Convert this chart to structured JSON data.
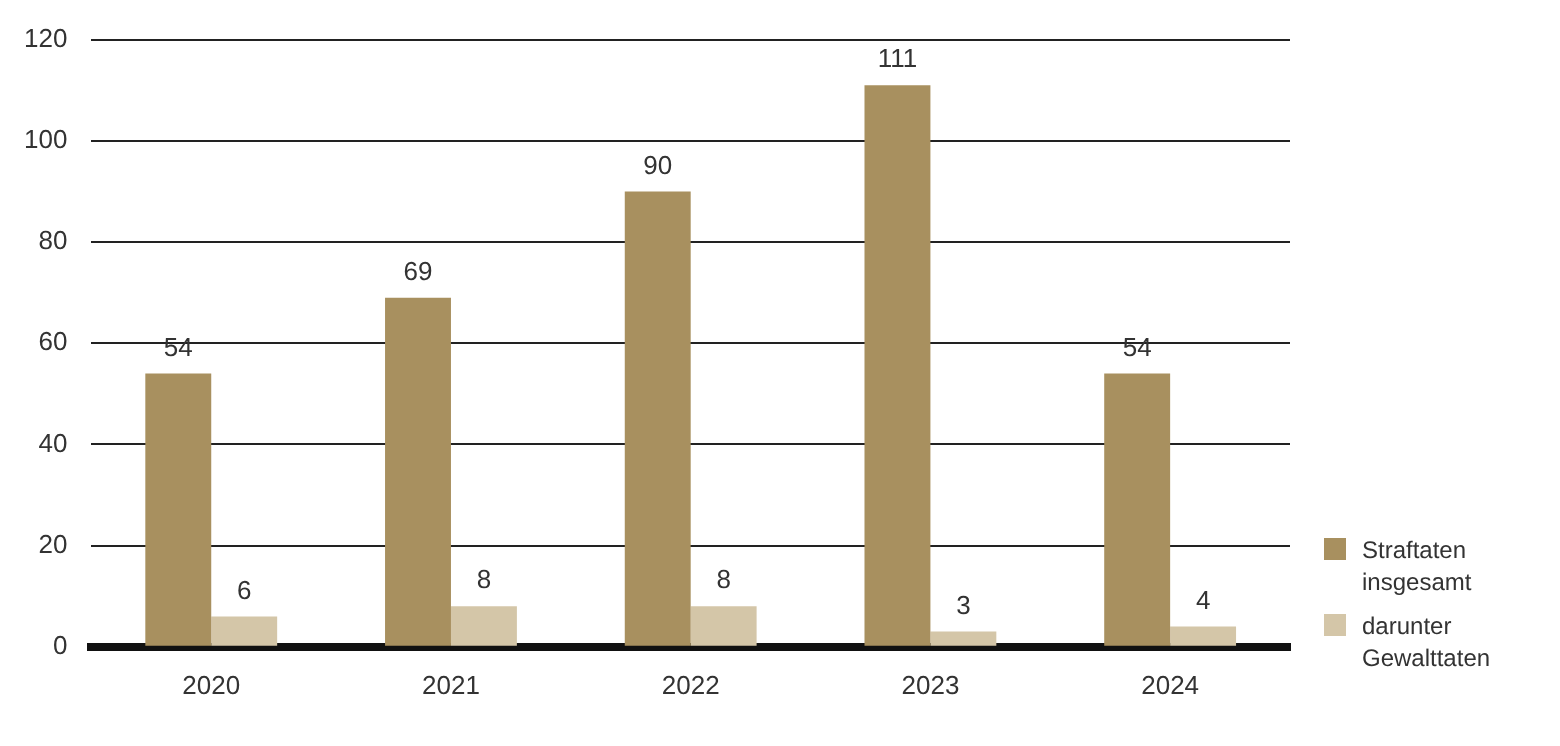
{
  "chart_data": {
    "type": "bar",
    "categories": [
      "2020",
      "2021",
      "2022",
      "2023",
      "2024"
    ],
    "series": [
      {
        "name": "Straftaten insgesamt",
        "color": "#a8905f",
        "values": [
          54,
          69,
          90,
          111,
          54
        ]
      },
      {
        "name": "darunter Gewalttaten",
        "color": "#d4c6a8",
        "values": [
          6,
          8,
          8,
          3,
          4
        ]
      }
    ],
    "ylim": [
      0,
      120
    ],
    "yticks": [
      0,
      20,
      40,
      60,
      80,
      100,
      120
    ],
    "grid": "y",
    "legend": "bottom right",
    "data_labels": true
  }
}
